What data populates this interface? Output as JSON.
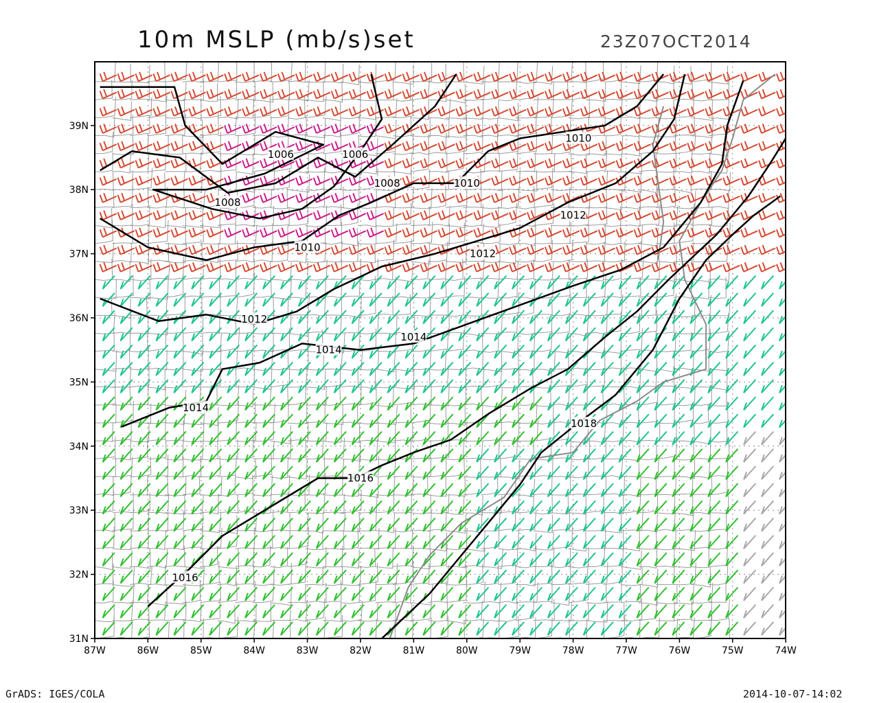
{
  "header": {
    "title": "10m MSLP (mb/s)set",
    "valid_time": "23Z07OCT2014"
  },
  "footer": {
    "software": "GrADS: IGES/COLA",
    "print_time": "2014-10-07-14:02"
  },
  "colors": {
    "red": "#d64a32",
    "magenta": "#cc1d8a",
    "orange": "#eea33c",
    "teal": "#1fc48f",
    "green": "#2fc02f",
    "gray": "#a8a8a8",
    "isobar": "#000000",
    "county": "#9a9a9a"
  },
  "map": {
    "lon_range": [
      -87,
      -74
    ],
    "lat_range": [
      31,
      40
    ],
    "lon_labels": [
      "87W",
      "86W",
      "85W",
      "84W",
      "83W",
      "82W",
      "81W",
      "80W",
      "79W",
      "78W",
      "77W",
      "76W",
      "75W",
      "74W"
    ],
    "lat_labels": [
      "31N",
      "32N",
      "33N",
      "34N",
      "35N",
      "36N",
      "37N",
      "38N",
      "39N"
    ],
    "isobars": [
      {
        "label": "1006",
        "pts": [
          [
            -86.9,
            39.6
          ],
          [
            -85.5,
            39.6
          ],
          [
            -85.3,
            39.0
          ],
          [
            -84.6,
            38.4
          ],
          [
            -83.6,
            38.9
          ],
          [
            -82.7,
            38.7
          ],
          [
            -83.8,
            38.25
          ],
          [
            -84.9,
            38.0
          ],
          [
            -85.9,
            38.0
          ],
          [
            -84.8,
            37.7
          ],
          [
            -83.9,
            37.55
          ],
          [
            -83.1,
            37.7
          ],
          [
            -82.5,
            38.05
          ],
          [
            -82.0,
            38.6
          ],
          [
            -81.6,
            39.1
          ],
          [
            -81.8,
            39.8
          ]
        ]
      },
      {
        "label": "1008",
        "pts": [
          [
            -86.9,
            38.3
          ],
          [
            -86.3,
            38.6
          ],
          [
            -85.4,
            38.5
          ],
          [
            -84.5,
            37.95
          ],
          [
            -83.6,
            38.1
          ],
          [
            -82.8,
            38.5
          ],
          [
            -82.1,
            38.2
          ],
          [
            -81.4,
            38.7
          ],
          [
            -80.6,
            39.3
          ],
          [
            -80.2,
            39.8
          ]
        ]
      },
      {
        "label": "1010",
        "pts": [
          [
            -86.9,
            37.55
          ],
          [
            -86.0,
            37.1
          ],
          [
            -84.9,
            36.9
          ],
          [
            -84.0,
            37.1
          ],
          [
            -83.1,
            37.2
          ],
          [
            -82.4,
            37.6
          ],
          [
            -81.8,
            37.8
          ],
          [
            -81.0,
            38.1
          ],
          [
            -80.2,
            38.1
          ],
          [
            -79.6,
            38.6
          ],
          [
            -79.0,
            38.8
          ],
          [
            -78.2,
            38.9
          ],
          [
            -77.4,
            39.0
          ],
          [
            -76.8,
            39.3
          ],
          [
            -76.3,
            39.8
          ]
        ]
      },
      {
        "label": "1012",
        "pts": [
          [
            -86.9,
            36.3
          ],
          [
            -85.8,
            35.95
          ],
          [
            -84.9,
            36.05
          ],
          [
            -84.0,
            35.9
          ],
          [
            -83.2,
            36.1
          ],
          [
            -82.5,
            36.45
          ],
          [
            -81.6,
            36.8
          ],
          [
            -80.6,
            37.0
          ],
          [
            -79.8,
            37.2
          ],
          [
            -79.0,
            37.4
          ],
          [
            -78.1,
            37.8
          ],
          [
            -77.2,
            38.1
          ],
          [
            -76.5,
            38.6
          ],
          [
            -76.1,
            39.1
          ],
          [
            -75.9,
            39.8
          ]
        ]
      },
      {
        "label": "1014",
        "pts": [
          [
            -86.5,
            34.3
          ],
          [
            -85.6,
            34.6
          ],
          [
            -84.9,
            34.7
          ],
          [
            -84.6,
            35.2
          ],
          [
            -83.9,
            35.3
          ],
          [
            -83.1,
            35.6
          ],
          [
            -82.0,
            35.5
          ],
          [
            -81.0,
            35.6
          ],
          [
            -80.0,
            35.9
          ],
          [
            -79.0,
            36.2
          ],
          [
            -78.0,
            36.5
          ],
          [
            -77.1,
            36.75
          ],
          [
            -76.3,
            37.1
          ],
          [
            -75.6,
            37.8
          ],
          [
            -75.2,
            38.4
          ],
          [
            -75.1,
            39.0
          ],
          [
            -74.8,
            39.7
          ]
        ]
      },
      {
        "label": "1016",
        "pts": [
          [
            -86.0,
            31.5
          ],
          [
            -85.2,
            32.1
          ],
          [
            -84.6,
            32.6
          ],
          [
            -84.0,
            32.9
          ],
          [
            -83.4,
            33.2
          ],
          [
            -82.8,
            33.5
          ],
          [
            -82.1,
            33.5
          ],
          [
            -81.6,
            33.7
          ],
          [
            -81.0,
            33.9
          ],
          [
            -80.3,
            34.1
          ],
          [
            -79.6,
            34.5
          ],
          [
            -78.8,
            34.9
          ],
          [
            -78.1,
            35.2
          ],
          [
            -77.4,
            35.7
          ],
          [
            -76.8,
            36.1
          ],
          [
            -76.2,
            36.6
          ],
          [
            -75.3,
            37.3
          ],
          [
            -74.7,
            37.9
          ],
          [
            -74.3,
            38.4
          ],
          [
            -74.0,
            38.8
          ],
          [
            -73.9,
            39.2
          ]
        ]
      },
      {
        "label": "1018",
        "pts": [
          [
            -81.6,
            31.0
          ],
          [
            -80.7,
            31.7
          ],
          [
            -80.1,
            32.3
          ],
          [
            -79.6,
            32.8
          ],
          [
            -79.0,
            33.4
          ],
          [
            -78.6,
            33.9
          ],
          [
            -78.0,
            34.3
          ],
          [
            -77.2,
            34.8
          ],
          [
            -76.5,
            35.5
          ],
          [
            -76.0,
            36.3
          ],
          [
            -75.5,
            36.9
          ],
          [
            -75.0,
            37.3
          ],
          [
            -74.6,
            37.6
          ],
          [
            -74.1,
            37.9
          ]
        ]
      }
    ],
    "isobar_labels": [
      {
        "text": "1006",
        "lon": -83.5,
        "lat": 38.55
      },
      {
        "text": "1006",
        "lon": -82.1,
        "lat": 38.55
      },
      {
        "text": "1008",
        "lon": -84.5,
        "lat": 37.8
      },
      {
        "text": "1008",
        "lon": -81.5,
        "lat": 38.1
      },
      {
        "text": "1010",
        "lon": -80.0,
        "lat": 38.1
      },
      {
        "text": "1010",
        "lon": -83.0,
        "lat": 37.1
      },
      {
        "text": "1010",
        "lon": -77.9,
        "lat": 38.8
      },
      {
        "text": "1012",
        "lon": -84.0,
        "lat": 35.98
      },
      {
        "text": "1012",
        "lon": -79.7,
        "lat": 37.0
      },
      {
        "text": "1012",
        "lon": -78.0,
        "lat": 37.6
      },
      {
        "text": "1014",
        "lon": -81.0,
        "lat": 35.7
      },
      {
        "text": "1014",
        "lon": -82.6,
        "lat": 35.5
      },
      {
        "text": "1014",
        "lon": -85.1,
        "lat": 34.6
      },
      {
        "text": "1016",
        "lon": -82.0,
        "lat": 33.5
      },
      {
        "text": "1016",
        "lon": -85.3,
        "lat": 31.95
      },
      {
        "text": "1018",
        "lon": -77.8,
        "lat": 34.35
      }
    ],
    "wind_zones": [
      {
        "color": "red",
        "lon": [
          -87,
          -79.3
        ],
        "lat": [
          35.3,
          39.8
        ]
      },
      {
        "color": "magenta",
        "lon": [
          -84.8,
          -81.7
        ],
        "lat": [
          37.0,
          39.0
        ]
      },
      {
        "color": "red",
        "lon": [
          -79.3,
          -73.9
        ],
        "lat": [
          36.6,
          39.8
        ]
      },
      {
        "color": "red",
        "lon": [
          -79.0,
          -76.5
        ],
        "lat": [
          32.4,
          34.2
        ]
      },
      {
        "color": "teal",
        "lon": [
          -87,
          -80.0
        ],
        "lat": [
          34.8,
          36.6
        ]
      },
      {
        "color": "teal",
        "lon": [
          -80.0,
          -73.9
        ],
        "lat": [
          33.6,
          36.6
        ]
      },
      {
        "color": "green",
        "lon": [
          -87,
          -78.5
        ],
        "lat": [
          31.0,
          34.8
        ]
      },
      {
        "color": "teal",
        "lon": [
          -80.0,
          -77.0
        ],
        "lat": [
          31.0,
          33.8
        ]
      },
      {
        "color": "green",
        "lon": [
          -77.0,
          -75.0
        ],
        "lat": [
          31.0,
          34.0
        ]
      },
      {
        "color": "gray",
        "lon": [
          -75.0,
          -73.9
        ],
        "lat": [
          31.0,
          34.2
        ]
      }
    ]
  }
}
